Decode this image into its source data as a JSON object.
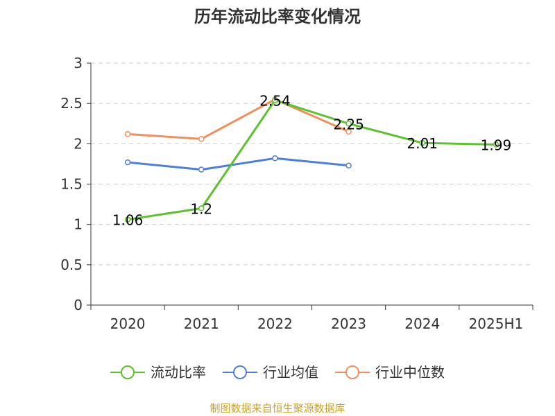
{
  "chart_data": {
    "type": "line",
    "title": "历年流动比率变化情况",
    "categories": [
      "2020",
      "2021",
      "2022",
      "2023",
      "2024",
      "2025H1"
    ],
    "ylim": [
      0,
      3
    ],
    "yticks": [
      "0",
      "0.5",
      "1",
      "1.5",
      "2",
      "2.5",
      "3"
    ],
    "grid": true,
    "legend_position": "bottom",
    "series": [
      {
        "name": "流动比率",
        "color": "#5cc22b",
        "values": [
          1.06,
          1.2,
          2.54,
          2.25,
          2.01,
          1.99
        ],
        "labels": [
          "1.06",
          "1.2",
          "2.54",
          "2.25",
          "2.01",
          "1.99"
        ]
      },
      {
        "name": "行业均值",
        "color": "#4c7fdb",
        "values": [
          1.77,
          1.68,
          1.82,
          1.73,
          null,
          null
        ]
      },
      {
        "name": "行业中位数",
        "color": "#f28e5b",
        "values": [
          2.12,
          2.06,
          2.55,
          2.15,
          null,
          null
        ]
      }
    ]
  },
  "source": "制图数据来自恒生聚源数据库"
}
